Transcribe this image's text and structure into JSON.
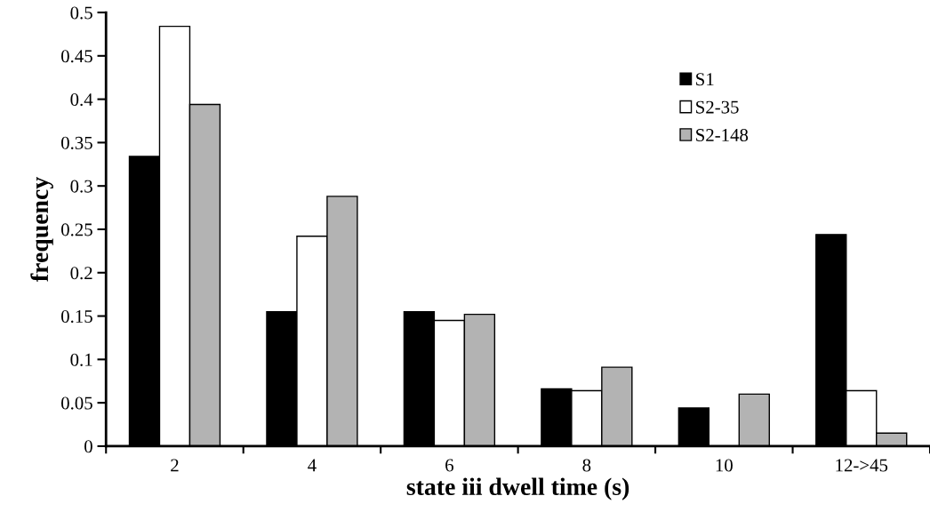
{
  "chart_data": {
    "type": "bar",
    "xlabel": "state iii dwell time (s)",
    "ylabel": "frequency",
    "categories": [
      "2",
      "4",
      "6",
      "8",
      "10",
      "12->45"
    ],
    "series": [
      {
        "name": "S1",
        "color": "#000000",
        "values": [
          0.334,
          0.155,
          0.155,
          0.066,
          0.044,
          0.244
        ]
      },
      {
        "name": "S2-35",
        "color": "#ffffff",
        "values": [
          0.484,
          0.242,
          0.145,
          0.064,
          null,
          0.064
        ]
      },
      {
        "name": "S2-148",
        "color": "#b3b3b3",
        "values": [
          0.394,
          0.288,
          0.152,
          0.091,
          0.06,
          0.015
        ]
      }
    ],
    "ylim": [
      0,
      0.5
    ],
    "yticks": [
      0,
      0.05,
      0.1,
      0.15,
      0.2,
      0.25,
      0.3,
      0.35,
      0.4,
      0.45,
      0.5
    ],
    "legend": "top right",
    "grid": false
  }
}
